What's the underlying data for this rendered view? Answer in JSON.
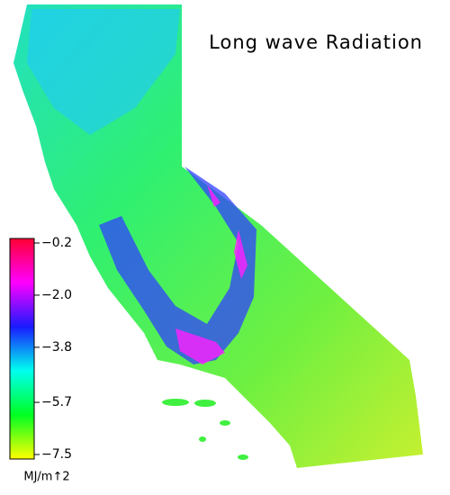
{
  "title": "Long wave Radiation",
  "colorbar": {
    "lim": [
      -7.5,
      -0.2
    ],
    "ticks": [
      {
        "value": -0.2,
        "label": "−0.2"
      },
      {
        "value": -2.0,
        "label": "−2.0"
      },
      {
        "value": -3.8,
        "label": "−3.8"
      },
      {
        "value": -5.7,
        "label": "−5.7"
      },
      {
        "value": -7.5,
        "label": "−7.5"
      }
    ],
    "colors": [
      "#ffff00",
      "#00ff22",
      "#00ffee",
      "#1a1aff",
      "#ff00ff",
      "#ff0033"
    ],
    "units": "MJ/m↑2"
  }
}
